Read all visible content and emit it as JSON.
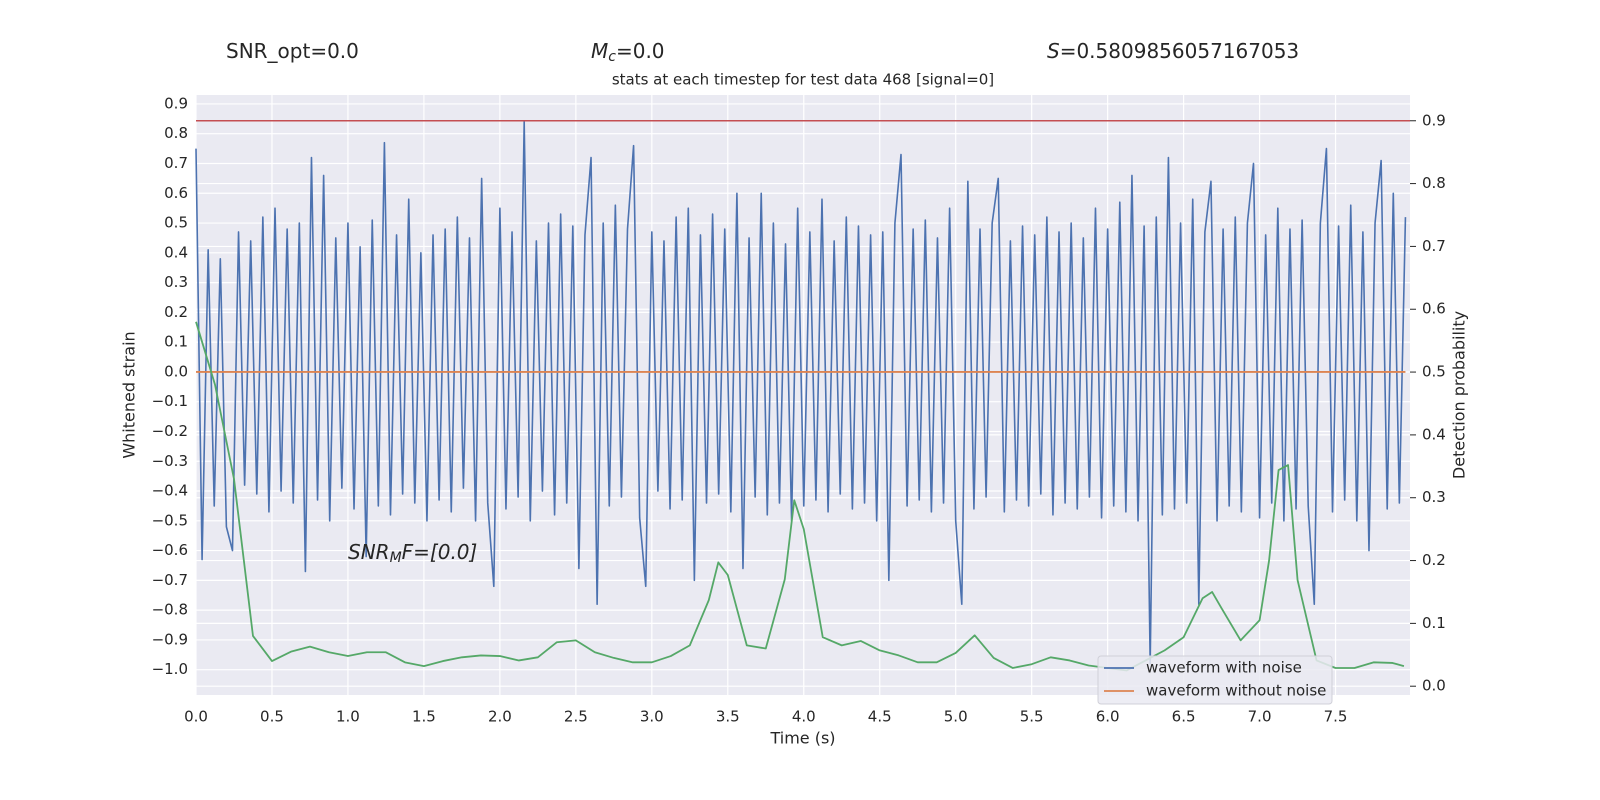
{
  "chart_data": {
    "type": "line",
    "stats": [
      {
        "main": "SNR_opt=0.0"
      },
      {
        "main": "M",
        "sub": "c",
        "rest": "=0.0"
      },
      {
        "main": "S",
        "rest": "=0.5809856057167053"
      }
    ],
    "title": "stats at each timestep for test data 468 [signal=0]",
    "annotation": {
      "main": "SNR",
      "sub": "M",
      "rest": "F=[0.0]"
    },
    "xlabel": "Time (s)",
    "ylabel": "Whitened strain",
    "y2label": "Detection probability",
    "xlim": [
      0,
      7.99
    ],
    "ylim": [
      -1.085,
      0.93
    ],
    "y2lim": [
      -0.014,
      0.941
    ],
    "xticks": [
      {
        "value": 0,
        "label": "0.0"
      },
      0.5,
      {
        "value": 1,
        "label": "1.0"
      },
      1.5,
      {
        "value": 2,
        "label": "2.0"
      },
      2.5,
      {
        "value": 3,
        "label": "3.0"
      },
      3.5,
      {
        "value": 4,
        "label": "4.0"
      },
      4.5,
      {
        "value": 5,
        "label": "5.0"
      },
      5.5,
      {
        "value": 6,
        "label": "6.0"
      },
      6.5,
      {
        "value": 7,
        "label": "7.0"
      },
      7.5
    ],
    "yticks": [
      {
        "value": -1,
        "label": "−1.0"
      },
      {
        "value": -0.9,
        "label": "−0.9"
      },
      {
        "value": -0.8,
        "label": "−0.8"
      },
      {
        "value": -0.7,
        "label": "−0.7"
      },
      {
        "value": -0.6,
        "label": "−0.6"
      },
      {
        "value": -0.5,
        "label": "−0.5"
      },
      {
        "value": -0.4,
        "label": "−0.4"
      },
      {
        "value": -0.3,
        "label": "−0.3"
      },
      {
        "value": -0.2,
        "label": "−0.2"
      },
      {
        "value": -0.1,
        "label": "−0.1"
      },
      {
        "value": 0,
        "label": "0.0"
      },
      0.1,
      0.2,
      0.3,
      0.4,
      0.5,
      0.6,
      0.7,
      0.8,
      0.9
    ],
    "y2ticks": [
      {
        "value": 0,
        "label": "0.0"
      },
      0.1,
      0.2,
      0.3,
      0.4,
      0.5,
      0.6,
      0.7,
      0.8,
      0.9
    ],
    "grid": true,
    "legend": "lower right",
    "series": [
      {
        "name": "waveform with noise",
        "color": "#4c72b0",
        "x": [
          0,
          0.04,
          0.08,
          0.12,
          0.16,
          0.2,
          0.24,
          0.28,
          0.32,
          0.36,
          0.4,
          0.44,
          0.48,
          0.52,
          0.56,
          0.6,
          0.64,
          0.68,
          0.72,
          0.76,
          0.8,
          0.84,
          0.88,
          0.92,
          0.96,
          1,
          1.04,
          1.08,
          1.12,
          1.16,
          1.2,
          1.24,
          1.28,
          1.32,
          1.36,
          1.4,
          1.44,
          1.48,
          1.52,
          1.56,
          1.6,
          1.64,
          1.68,
          1.72,
          1.76,
          1.8,
          1.84,
          1.88,
          1.92,
          1.96,
          2,
          2.04,
          2.08,
          2.12,
          2.16,
          2.2,
          2.24,
          2.28,
          2.32,
          2.36,
          2.4,
          2.44,
          2.48,
          2.52,
          2.56,
          2.6,
          2.64,
          2.68,
          2.72,
          2.76,
          2.8,
          2.84,
          2.88,
          2.92,
          2.96,
          3,
          3.04,
          3.08,
          3.12,
          3.16,
          3.2,
          3.24,
          3.28,
          3.32,
          3.36,
          3.4,
          3.44,
          3.48,
          3.52,
          3.56,
          3.6,
          3.64,
          3.68,
          3.72,
          3.76,
          3.8,
          3.84,
          3.88,
          3.92,
          3.96,
          4,
          4.04,
          4.08,
          4.12,
          4.16,
          4.2,
          4.24,
          4.28,
          4.32,
          4.36,
          4.4,
          4.44,
          4.48,
          4.52,
          4.56,
          4.6,
          4.64,
          4.68,
          4.72,
          4.76,
          4.8,
          4.84,
          4.88,
          4.92,
          4.96,
          5,
          5.04,
          5.08,
          5.12,
          5.16,
          5.2,
          5.24,
          5.28,
          5.32,
          5.36,
          5.4,
          5.44,
          5.48,
          5.52,
          5.56,
          5.6,
          5.64,
          5.68,
          5.72,
          5.76,
          5.8,
          5.84,
          5.88,
          5.92,
          5.96,
          6,
          6.04,
          6.08,
          6.12,
          6.16,
          6.2,
          6.24,
          6.28,
          6.32,
          6.36,
          6.4,
          6.44,
          6.48,
          6.52,
          6.56,
          6.6,
          6.64,
          6.68,
          6.72,
          6.76,
          6.8,
          6.84,
          6.88,
          6.92,
          6.96,
          7,
          7.04,
          7.08,
          7.12,
          7.16,
          7.2,
          7.24,
          7.28,
          7.32,
          7.36,
          7.4,
          7.44,
          7.48,
          7.52,
          7.56,
          7.6,
          7.64,
          7.68,
          7.72,
          7.76,
          7.8,
          7.84,
          7.88,
          7.92,
          7.96
        ],
        "values": [
          0.75,
          -0.63,
          0.41,
          -0.45,
          0.38,
          -0.52,
          -0.6,
          0.47,
          -0.38,
          0.44,
          -0.41,
          0.52,
          -0.47,
          0.55,
          -0.4,
          0.48,
          -0.44,
          0.5,
          -0.67,
          0.72,
          -0.43,
          0.66,
          -0.5,
          0.45,
          -0.39,
          0.5,
          -0.46,
          0.42,
          -0.62,
          0.51,
          -0.45,
          0.77,
          -0.48,
          0.46,
          -0.41,
          0.58,
          -0.44,
          0.4,
          -0.5,
          0.46,
          -0.43,
          0.48,
          -0.47,
          0.52,
          -0.39,
          0.45,
          -0.5,
          0.65,
          -0.44,
          -0.72,
          0.55,
          -0.46,
          0.47,
          -0.42,
          0.84,
          -0.5,
          0.44,
          -0.4,
          0.5,
          -0.48,
          0.53,
          -0.44,
          0.49,
          -0.66,
          0.46,
          0.72,
          -0.78,
          0.5,
          -0.45,
          0.56,
          -0.42,
          0.48,
          0.76,
          -0.49,
          -0.72,
          0.47,
          -0.4,
          0.44,
          -0.46,
          0.52,
          -0.43,
          0.55,
          -0.7,
          0.46,
          -0.44,
          0.53,
          -0.41,
          0.48,
          -0.47,
          0.6,
          -0.66,
          0.45,
          -0.42,
          0.6,
          -0.48,
          0.5,
          -0.44,
          0.43,
          -0.5,
          0.55,
          -0.45,
          0.47,
          -0.43,
          0.58,
          -0.47,
          0.44,
          -0.41,
          0.52,
          -0.46,
          0.49,
          -0.44,
          0.46,
          -0.5,
          0.47,
          -0.7,
          0.5,
          0.73,
          -0.45,
          0.48,
          -0.43,
          0.51,
          -0.47,
          0.45,
          -0.44,
          0.55,
          -0.5,
          -0.78,
          0.64,
          -0.46,
          0.48,
          -0.42,
          0.5,
          0.65,
          -0.47,
          0.44,
          -0.43,
          0.49,
          -0.45,
          0.46,
          -0.41,
          0.52,
          -0.48,
          0.47,
          -0.44,
          0.5,
          -0.46,
          0.45,
          -0.42,
          0.55,
          -0.49,
          0.48,
          -0.45,
          0.57,
          -0.47,
          0.66,
          -0.5,
          0.49,
          -0.98,
          0.52,
          -0.48,
          0.72,
          -0.46,
          0.5,
          -0.44,
          0.58,
          -0.78,
          0.47,
          0.64,
          -0.5,
          0.48,
          -0.45,
          0.52,
          -0.47,
          0.5,
          0.7,
          -0.49,
          0.46,
          -0.44,
          0.55,
          -0.5,
          0.48,
          -0.46,
          0.51,
          -0.45,
          -0.78,
          0.5,
          0.75,
          -0.47,
          0.49,
          -0.43,
          0.56,
          -0.5,
          0.47,
          -0.6,
          0.5,
          0.71,
          -0.46,
          0.6,
          -0.44,
          0.52
        ]
      },
      {
        "name": "waveform without noise",
        "color": "#dd8452",
        "x": [
          0,
          7.96
        ],
        "values": [
          0,
          0
        ]
      },
      {
        "name": "detection probability",
        "color": "#55a868",
        "axis": "y2",
        "legend": false,
        "x": [
          0,
          0.125,
          0.25,
          0.375,
          0.5,
          0.625,
          0.75,
          0.875,
          1,
          1.125,
          1.25,
          1.375,
          1.5,
          1.625,
          1.75,
          1.875,
          2,
          2.125,
          2.25,
          2.375,
          2.5,
          2.625,
          2.75,
          2.875,
          3,
          3.125,
          3.25,
          3.375,
          3.4375,
          3.5,
          3.625,
          3.75,
          3.875,
          3.9375,
          4,
          4.125,
          4.25,
          4.375,
          4.5,
          4.625,
          4.75,
          4.875,
          5,
          5.125,
          5.25,
          5.375,
          5.5,
          5.625,
          5.75,
          5.875,
          6,
          6.125,
          6.25,
          6.375,
          6.5,
          6.625,
          6.6875,
          6.75,
          6.875,
          7,
          7.0625,
          7.125,
          7.1875,
          7.25,
          7.375,
          7.5,
          7.625,
          7.75,
          7.875,
          7.95
        ],
        "values": [
          0.58,
          0.48,
          0.33,
          0.08,
          0.04,
          0.055,
          0.063,
          0.054,
          0.048,
          0.054,
          0.054,
          0.038,
          0.032,
          0.04,
          0.046,
          0.049,
          0.048,
          0.041,
          0.046,
          0.07,
          0.073,
          0.054,
          0.045,
          0.038,
          0.038,
          0.048,
          0.065,
          0.137,
          0.197,
          0.177,
          0.065,
          0.06,
          0.17,
          0.296,
          0.25,
          0.078,
          0.065,
          0.072,
          0.057,
          0.049,
          0.038,
          0.038,
          0.053,
          0.081,
          0.045,
          0.029,
          0.035,
          0.046,
          0.041,
          0.033,
          0.029,
          0.025,
          0.041,
          0.057,
          0.078,
          0.14,
          0.15,
          0.124,
          0.073,
          0.105,
          0.2,
          0.344,
          0.352,
          0.169,
          0.041,
          0.029,
          0.029,
          0.038,
          0.037,
          0.032
        ]
      }
    ],
    "hlines": [
      {
        "value": 0.9,
        "axis": "y2",
        "color": "#c44e52"
      }
    ]
  }
}
